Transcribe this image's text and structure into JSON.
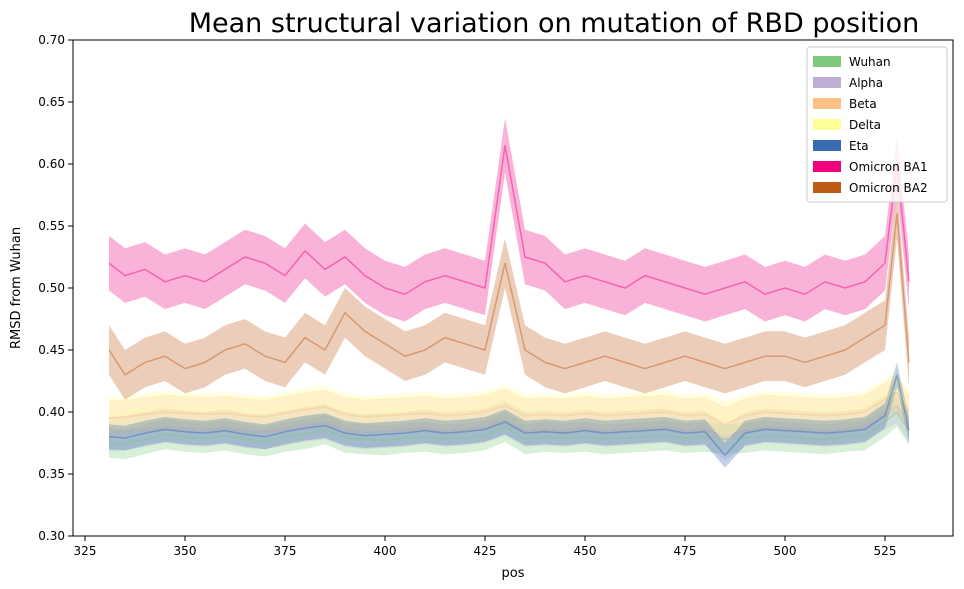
{
  "chart_data": {
    "type": "line",
    "title": "Mean structural variation on mutation of RBD position",
    "xlabel": "pos",
    "ylabel": "RMSD from Wuhan",
    "xlim": [
      322,
      542
    ],
    "ylim": [
      0.3,
      0.7
    ],
    "xticks": [
      325,
      350,
      375,
      400,
      425,
      450,
      475,
      500,
      525
    ],
    "yticks": [
      0.3,
      0.35,
      0.4,
      0.45,
      0.5,
      0.55,
      0.6,
      0.65,
      0.7
    ],
    "legend_position": "top-right",
    "grid": false,
    "x": [
      331,
      335,
      340,
      345,
      350,
      355,
      360,
      365,
      370,
      375,
      380,
      385,
      390,
      395,
      400,
      405,
      410,
      415,
      420,
      425,
      430,
      435,
      440,
      445,
      450,
      455,
      460,
      465,
      470,
      475,
      480,
      485,
      490,
      495,
      500,
      505,
      510,
      515,
      520,
      525,
      528,
      531
    ],
    "series": [
      {
        "name": "Wuhan",
        "color": "#7fc97f",
        "values": [
          0.375,
          0.374,
          0.378,
          0.382,
          0.38,
          0.379,
          0.381,
          0.378,
          0.376,
          0.38,
          0.382,
          0.386,
          0.379,
          0.378,
          0.377,
          0.379,
          0.38,
          0.378,
          0.379,
          0.381,
          0.388,
          0.378,
          0.38,
          0.379,
          0.38,
          0.378,
          0.379,
          0.38,
          0.381,
          0.379,
          0.38,
          0.378,
          0.379,
          0.381,
          0.38,
          0.379,
          0.378,
          0.38,
          0.381,
          0.392,
          0.4,
          0.385
        ],
        "spread": 0.012
      },
      {
        "name": "Alpha",
        "color": "#beaed4",
        "values": [
          0.382,
          0.383,
          0.386,
          0.389,
          0.387,
          0.386,
          0.388,
          0.385,
          0.384,
          0.387,
          0.39,
          0.392,
          0.386,
          0.384,
          0.385,
          0.386,
          0.388,
          0.386,
          0.387,
          0.389,
          0.395,
          0.386,
          0.387,
          0.386,
          0.388,
          0.386,
          0.387,
          0.388,
          0.389,
          0.386,
          0.387,
          0.375,
          0.386,
          0.389,
          0.388,
          0.387,
          0.386,
          0.387,
          0.389,
          0.4,
          0.405,
          0.39
        ],
        "spread": 0.014
      },
      {
        "name": "Beta",
        "color": "#fdc086",
        "values": [
          0.395,
          0.396,
          0.398,
          0.4,
          0.399,
          0.398,
          0.399,
          0.397,
          0.396,
          0.399,
          0.402,
          0.404,
          0.398,
          0.396,
          0.397,
          0.398,
          0.399,
          0.397,
          0.398,
          0.4,
          0.405,
          0.397,
          0.398,
          0.397,
          0.399,
          0.397,
          0.398,
          0.399,
          0.4,
          0.397,
          0.398,
          0.39,
          0.397,
          0.4,
          0.399,
          0.398,
          0.397,
          0.398,
          0.4,
          0.41,
          0.415,
          0.4
        ],
        "spread": 0.014
      },
      {
        "name": "Delta",
        "color": "#ffff99",
        "values": [
          0.398,
          0.399,
          0.401,
          0.403,
          0.402,
          0.401,
          0.402,
          0.4,
          0.399,
          0.402,
          0.405,
          0.407,
          0.401,
          0.399,
          0.4,
          0.401,
          0.402,
          0.4,
          0.401,
          0.403,
          0.408,
          0.4,
          0.401,
          0.4,
          0.402,
          0.4,
          0.401,
          0.402,
          0.403,
          0.4,
          0.401,
          0.395,
          0.4,
          0.403,
          0.402,
          0.401,
          0.4,
          0.401,
          0.403,
          0.413,
          0.418,
          0.403
        ],
        "spread": 0.014
      },
      {
        "name": "Eta",
        "color": "#386cb0",
        "values": [
          0.38,
          0.379,
          0.383,
          0.386,
          0.384,
          0.383,
          0.385,
          0.382,
          0.38,
          0.384,
          0.387,
          0.389,
          0.383,
          0.381,
          0.382,
          0.383,
          0.385,
          0.383,
          0.384,
          0.386,
          0.392,
          0.383,
          0.384,
          0.383,
          0.385,
          0.383,
          0.384,
          0.385,
          0.386,
          0.383,
          0.384,
          0.365,
          0.383,
          0.386,
          0.385,
          0.384,
          0.383,
          0.384,
          0.386,
          0.397,
          0.43,
          0.385
        ],
        "spread": 0.01
      },
      {
        "name": "Omicron BA1",
        "color": "#f0027f",
        "values": [
          0.52,
          0.51,
          0.515,
          0.505,
          0.51,
          0.505,
          0.515,
          0.525,
          0.52,
          0.51,
          0.53,
          0.515,
          0.525,
          0.51,
          0.5,
          0.495,
          0.505,
          0.51,
          0.505,
          0.5,
          0.615,
          0.525,
          0.52,
          0.505,
          0.51,
          0.505,
          0.5,
          0.51,
          0.505,
          0.5,
          0.495,
          0.5,
          0.505,
          0.495,
          0.5,
          0.495,
          0.505,
          0.5,
          0.505,
          0.52,
          0.6,
          0.505
        ],
        "spread": 0.022
      },
      {
        "name": "Omicron BA2",
        "color": "#bf5b17",
        "values": [
          0.45,
          0.43,
          0.44,
          0.445,
          0.435,
          0.44,
          0.45,
          0.455,
          0.445,
          0.44,
          0.46,
          0.45,
          0.48,
          0.465,
          0.455,
          0.445,
          0.45,
          0.46,
          0.455,
          0.45,
          0.52,
          0.45,
          0.44,
          0.435,
          0.44,
          0.445,
          0.44,
          0.435,
          0.44,
          0.445,
          0.44,
          0.435,
          0.44,
          0.445,
          0.445,
          0.44,
          0.445,
          0.45,
          0.46,
          0.47,
          0.56,
          0.44
        ],
        "spread": 0.02
      }
    ]
  }
}
